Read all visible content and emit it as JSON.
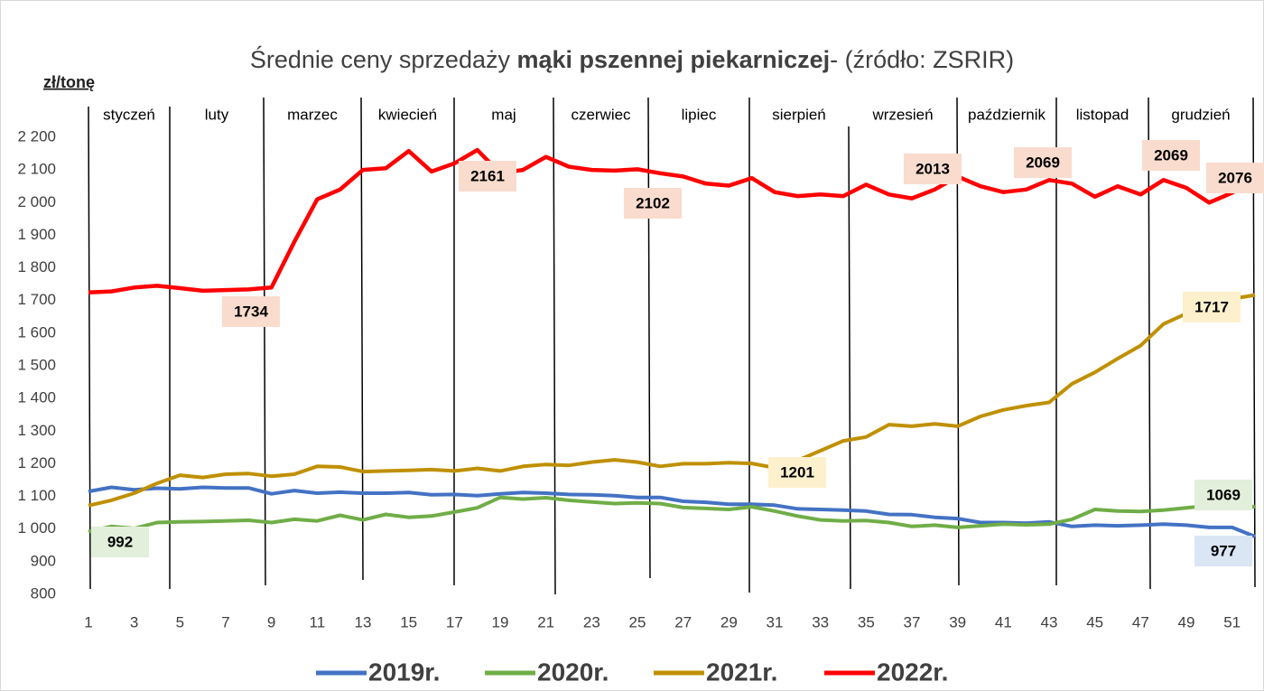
{
  "chart_data": {
    "type": "line",
    "title_prefix": "Średnie ceny sprzedaży ",
    "title_bold": "mąki pszennej piekarniczej",
    "title_suffix": "- (źródło: ZSRIR)",
    "y_label": "zł/tonę",
    "months": [
      "styczeń",
      "luty",
      "marzec",
      "kwiecień",
      "maj",
      "czerwiec",
      "lipiec",
      "sierpień",
      "wrzesień",
      "październik",
      "listopad",
      "grudzień"
    ],
    "x": [
      1,
      2,
      3,
      4,
      5,
      6,
      7,
      8,
      9,
      10,
      11,
      12,
      13,
      14,
      15,
      16,
      17,
      18,
      19,
      20,
      21,
      22,
      23,
      24,
      25,
      26,
      27,
      28,
      29,
      30,
      31,
      32,
      33,
      34,
      35,
      36,
      37,
      38,
      39,
      40,
      41,
      42,
      43,
      44,
      45,
      46,
      47,
      48,
      49,
      50,
      51,
      52
    ],
    "xlim": [
      1,
      52
    ],
    "xticks": [
      1,
      3,
      5,
      7,
      9,
      11,
      13,
      15,
      17,
      19,
      21,
      23,
      25,
      27,
      29,
      31,
      33,
      35,
      37,
      39,
      41,
      43,
      45,
      47,
      49,
      51
    ],
    "ylim": [
      800,
      2200
    ],
    "yticks": [
      800,
      900,
      {
        "value": 1000,
        "label": "1 000"
      },
      {
        "value": 1100,
        "label": "1 100"
      },
      {
        "value": 1200,
        "label": "1 200"
      },
      {
        "value": 1300,
        "label": "1 300"
      },
      {
        "value": 1400,
        "label": "1 400"
      },
      {
        "value": 1500,
        "label": "1 500"
      },
      {
        "value": 1600,
        "label": "1 600"
      },
      {
        "value": 1700,
        "label": "1 700"
      },
      {
        "value": 1800,
        "label": "1 800"
      },
      {
        "value": 1900,
        "label": "1 900"
      },
      {
        "value": 2000,
        "label": "2 000"
      },
      {
        "value": 2100,
        "label": "2 100"
      },
      {
        "value": 2200,
        "label": "2 200"
      }
    ],
    "grid": false,
    "legend": "bottom",
    "series": [
      {
        "name": "2019r.",
        "color": "#4472c4",
        "label_fill": "#dae6f4",
        "values": [
          1115,
          1128,
          1120,
          1125,
          1123,
          1128,
          1126,
          1126,
          1108,
          1118,
          1110,
          1113,
          1110,
          1110,
          1112,
          1105,
          1106,
          1102,
          1108,
          1112,
          1110,
          1106,
          1105,
          1102,
          1097,
          1097,
          1085,
          1082,
          1076,
          1076,
          1073,
          1062,
          1060,
          1058,
          1055,
          1045,
          1044,
          1036,
          1032,
          1020,
          1020,
          1018,
          1022,
          1008,
          1012,
          1010,
          1012,
          1015,
          1012,
          1005,
          1005,
          977
        ]
      },
      {
        "name": "2020r.",
        "color": "#70ad47",
        "label_fill": "#e2efda",
        "values": [
          992,
          1008,
          1002,
          1020,
          1022,
          1023,
          1025,
          1027,
          1020,
          1030,
          1025,
          1042,
          1028,
          1045,
          1036,
          1040,
          1052,
          1065,
          1097,
          1092,
          1096,
          1088,
          1083,
          1078,
          1080,
          1078,
          1066,
          1063,
          1060,
          1068,
          1055,
          1040,
          1028,
          1025,
          1026,
          1020,
          1008,
          1012,
          1005,
          1010,
          1015,
          1013,
          1015,
          1030,
          1060,
          1055,
          1054,
          1058,
          1065,
          1072,
          1064,
          1069
        ]
      },
      {
        "name": "2021r.",
        "color": "#bf9000",
        "label_fill": "#fdf0cc",
        "values": [
          1072,
          1088,
          1110,
          1140,
          1165,
          1158,
          1168,
          1170,
          1162,
          1168,
          1192,
          1190,
          1176,
          1178,
          1180,
          1182,
          1178,
          1186,
          1178,
          1192,
          1198,
          1195,
          1205,
          1212,
          1205,
          1192,
          1200,
          1200,
          1203,
          1201,
          1188,
          1210,
          1240,
          1270,
          1282,
          1320,
          1315,
          1322,
          1315,
          1345,
          1365,
          1378,
          1388,
          1445,
          1480,
          1522,
          1562,
          1628,
          1660,
          1690,
          1705,
          1717
        ]
      },
      {
        "name": "2022r.",
        "color": "#ff0000",
        "label_fill": "#f9dccd",
        "values": [
          1725,
          1728,
          1740,
          1745,
          1738,
          1730,
          1732,
          1734,
          1740,
          1880,
          2010,
          2040,
          2100,
          2105,
          2158,
          2095,
          2120,
          2161,
          2090,
          2100,
          2140,
          2110,
          2100,
          2098,
          2102,
          2090,
          2080,
          2058,
          2052,
          2075,
          2032,
          2020,
          2025,
          2020,
          2055,
          2025,
          2013,
          2040,
          2080,
          2050,
          2032,
          2040,
          2069,
          2058,
          2018,
          2050,
          2025,
          2069,
          2045,
          2000,
          2030,
          2076
        ]
      }
    ]
  }
}
